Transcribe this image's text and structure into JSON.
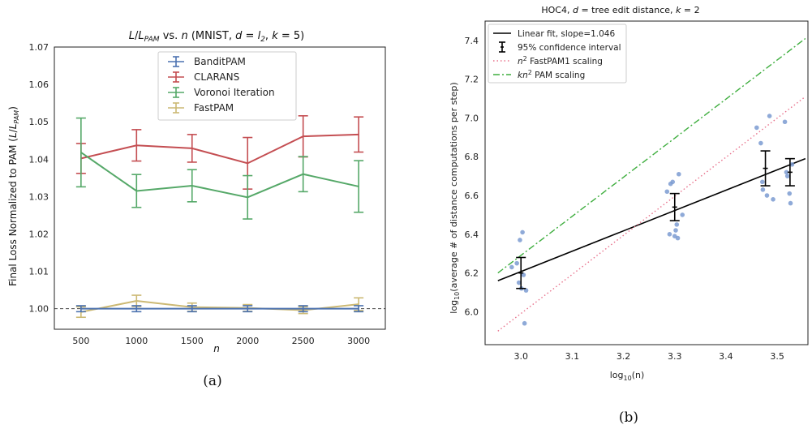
{
  "chart_data": [
    {
      "type": "line",
      "title": "L/L_PAM vs. n (MNIST, d = l_2, k = 5)",
      "title_parts": {
        "L1": "L",
        "slash": "/",
        "L2": "L",
        "sub": "PAM",
        "vs": " vs. ",
        "n": "n",
        "mnist": " (MNIST, ",
        "d": "d",
        "eq1": " = ",
        "l": "l",
        "lsub": "2",
        "comma": ", ",
        "k": "k",
        "eq2": " = 5)"
      },
      "xlabel": "n",
      "ylabel": "Final Loss Normalized to PAM (L/L_PAM)",
      "ylabel_parts": {
        "main": "Final Loss Normalized to PAM (",
        "L1": "L",
        "slash": "/",
        "L2": "L",
        "sub": "PAM",
        "close": ")"
      },
      "x": [
        500,
        1000,
        1500,
        2000,
        2500,
        3000
      ],
      "x_tick_labels": [
        "500",
        "1000",
        "1500",
        "2000",
        "2500",
        "3000"
      ],
      "y_ticks": [
        1.0,
        1.01,
        1.02,
        1.03,
        1.04,
        1.05,
        1.06,
        1.07
      ],
      "y_tick_labels": [
        "1.00",
        "1.01",
        "1.02",
        "1.03",
        "1.04",
        "1.05",
        "1.06",
        "1.07"
      ],
      "xlim": [
        260,
        3240
      ],
      "ylim": [
        0.9945,
        1.07
      ],
      "reference_line": 1.0,
      "legend_position": "top-center",
      "series": [
        {
          "name": "BanditPAM",
          "color": "#4c72b0",
          "values": [
            1.0,
            1.0,
            1.0,
            1.0,
            1.0,
            1.0
          ],
          "err": [
            0.0008,
            0.0008,
            0.0008,
            0.0008,
            0.0008,
            0.0008
          ]
        },
        {
          "name": "CLARANS",
          "color": "#c44e52",
          "values": [
            1.0402,
            1.0437,
            1.0429,
            1.0389,
            1.0461,
            1.0466
          ],
          "err": [
            0.004,
            0.0042,
            0.0037,
            0.0069,
            0.0055,
            0.0047
          ]
        },
        {
          "name": "Voronoi Iteration",
          "color": "#55a868",
          "values": [
            1.0418,
            1.0315,
            1.0329,
            1.0298,
            1.036,
            1.0327
          ],
          "err": [
            0.0092,
            0.0044,
            0.0043,
            0.0058,
            0.0047,
            0.0069
          ]
        },
        {
          "name": "FastPAM",
          "color": "#ccb974",
          "values": [
            0.9991,
            1.0021,
            1.0004,
            1.0002,
            0.9996,
            1.0012
          ],
          "err": [
            0.0014,
            0.0015,
            0.0011,
            0.0009,
            0.0009,
            0.0017
          ]
        }
      ]
    },
    {
      "type": "scatter",
      "title": "HOC4, d = tree edit distance, k = 2",
      "title_parts": {
        "a": "HOC4, ",
        "d": "d",
        "b": " =  tree edit distance, ",
        "k": "k",
        "c": " = 2"
      },
      "xlabel": "log10(n)",
      "xlabel_parts": {
        "log": "log",
        "sub": "10",
        "rest": "(n)"
      },
      "ylabel": "log10(average # of distance computations per step)",
      "ylabel_parts": {
        "log": "log",
        "sub": "10",
        "rest": "(average # of distance computations per step)"
      },
      "xlim": [
        2.93,
        3.56
      ],
      "ylim": [
        5.83,
        7.5
      ],
      "x_ticks": [
        3.0,
        3.1,
        3.2,
        3.3,
        3.4,
        3.5
      ],
      "x_tick_labels": [
        "3.0",
        "3.1",
        "3.2",
        "3.3",
        "3.4",
        "3.5"
      ],
      "y_ticks": [
        6.0,
        6.2,
        6.4,
        6.6,
        6.8,
        7.0,
        7.2,
        7.4
      ],
      "y_tick_labels": [
        "6.0",
        "6.2",
        "6.4",
        "6.6",
        "6.8",
        "7.0",
        "7.2",
        "7.4"
      ],
      "legend_position": "top-left",
      "points": {
        "color": "#7b9bd1",
        "x": [
          2.982,
          2.992,
          2.998,
          3.003,
          3.005,
          3.007,
          3.01,
          2.996,
          3.001,
          3.285,
          3.292,
          3.296,
          3.3,
          3.304,
          3.308,
          3.315,
          3.29,
          3.302,
          3.306,
          3.46,
          3.468,
          3.472,
          3.48,
          3.485,
          3.492,
          3.471,
          3.515,
          3.52,
          3.524,
          3.526,
          3.529,
          3.518
        ],
        "y": [
          6.23,
          6.25,
          6.37,
          6.41,
          6.19,
          5.94,
          6.11,
          6.15,
          6.12,
          6.62,
          6.66,
          6.67,
          6.39,
          6.45,
          6.71,
          6.5,
          6.4,
          6.42,
          6.38,
          6.95,
          6.87,
          6.63,
          6.6,
          7.01,
          6.58,
          6.67,
          6.98,
          6.7,
          6.61,
          6.56,
          6.76,
          6.72
        ]
      },
      "error_bars": {
        "name": "95% confidence interval",
        "color": "#000000",
        "x": [
          3.0,
          3.3,
          3.477,
          3.525
        ],
        "mean": [
          6.2,
          6.54,
          6.74,
          6.72
        ],
        "low": [
          6.12,
          6.47,
          6.65,
          6.65
        ],
        "high": [
          6.28,
          6.61,
          6.83,
          6.79
        ]
      },
      "lines": [
        {
          "name": "Linear fit, slope=1.046",
          "color": "#000000",
          "style": "solid",
          "x": [
            2.955,
            3.555
          ],
          "y": [
            6.16,
            6.79
          ]
        },
        {
          "name": "n^2 FastPAM1 scaling",
          "color": "#e8728c",
          "style": "dotted",
          "x": [
            2.955,
            3.555
          ],
          "y": [
            5.9,
            7.11
          ]
        },
        {
          "name": "kn^2 PAM scaling",
          "color": "#3fae3f",
          "style": "dashdot",
          "x": [
            2.955,
            3.555
          ],
          "y": [
            6.2,
            7.41
          ]
        }
      ],
      "legend_labels": {
        "fit": "Linear fit, slope=1.046",
        "ci": "95% confidence interval",
        "fastpam_n": "n",
        "fastpam_sup": "2",
        "fastpam_rest": " FastPAM1 scaling",
        "pam_k": "kn",
        "pam_sup": "2",
        "pam_rest": " PAM scaling"
      }
    }
  ],
  "captions": {
    "a": "(a)",
    "b": "(b)"
  }
}
